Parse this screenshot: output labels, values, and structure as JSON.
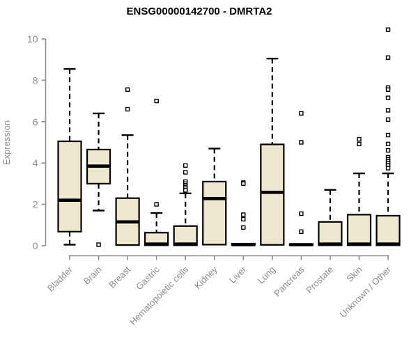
{
  "chart_data": {
    "type": "boxplot",
    "title": "ENSG00000142700 - DMRTA2",
    "ylabel": "Expression",
    "xlabel": "",
    "ylim": [
      0,
      10
    ],
    "yticks": [
      0,
      2,
      4,
      6,
      8,
      10
    ],
    "grid": false,
    "legend": "none",
    "categories": [
      "Bladder",
      "Brain",
      "Breast",
      "Gastric",
      "Hematopoietic cells",
      "Kidney",
      "Liver",
      "Lung",
      "Pancreas",
      "Prostate",
      "Skin",
      "Unknown / Other"
    ],
    "boxes": [
      {
        "category": "Bladder",
        "whisker_low": 0.05,
        "q1": 0.68,
        "median": 2.2,
        "q3": 5.05,
        "whisker_high": 8.55,
        "outliers": []
      },
      {
        "category": "Brain",
        "whisker_low": 1.7,
        "q1": 3.0,
        "median": 3.85,
        "q3": 4.65,
        "whisker_high": 6.4,
        "outliers": [
          0.05
        ]
      },
      {
        "category": "Breast",
        "whisker_low": 0.03,
        "q1": 0.03,
        "median": 1.15,
        "q3": 2.3,
        "whisker_high": 5.35,
        "outliers": [
          7.55,
          6.6
        ]
      },
      {
        "category": "Gastric",
        "whisker_low": 0.02,
        "q1": 0.02,
        "median": 0.08,
        "q3": 0.63,
        "whisker_high": 1.58,
        "outliers": [
          7.0,
          2.0
        ]
      },
      {
        "category": "Hematopoietic cells",
        "whisker_low": 0.02,
        "q1": 0.02,
        "median": 0.08,
        "q3": 0.95,
        "whisker_high": 2.53,
        "outliers": [
          3.88,
          3.55,
          3.1,
          3.0,
          2.92,
          2.84,
          2.76,
          2.68
        ]
      },
      {
        "category": "Kidney",
        "whisker_low": 0.03,
        "q1": 0.05,
        "median": 2.28,
        "q3": 3.1,
        "whisker_high": 4.7,
        "outliers": []
      },
      {
        "category": "Liver",
        "whisker_low": 0.02,
        "q1": 0.02,
        "median": 0.05,
        "q3": 0.1,
        "whisker_high": 0.12,
        "outliers": [
          3.05,
          3.0,
          1.5,
          1.28,
          0.88
        ]
      },
      {
        "category": "Lung",
        "whisker_low": 0.03,
        "q1": 0.04,
        "median": 2.58,
        "q3": 4.9,
        "whisker_high": 9.05,
        "outliers": []
      },
      {
        "category": "Pancreas",
        "whisker_low": 0.02,
        "q1": 0.02,
        "median": 0.05,
        "q3": 0.08,
        "whisker_high": 0.1,
        "outliers": [
          6.4,
          5.0,
          1.55,
          0.68
        ]
      },
      {
        "category": "Prostate",
        "whisker_low": 0.02,
        "q1": 0.02,
        "median": 0.08,
        "q3": 1.15,
        "whisker_high": 2.7,
        "outliers": []
      },
      {
        "category": "Skin",
        "whisker_low": 0.02,
        "q1": 0.02,
        "median": 0.08,
        "q3": 1.5,
        "whisker_high": 3.5,
        "outliers": [
          5.15,
          4.92
        ]
      },
      {
        "category": "Unknown / Other",
        "whisker_low": 0.02,
        "q1": 0.02,
        "median": 0.08,
        "q3": 1.45,
        "whisker_high": 3.5,
        "outliers": [
          10.45,
          9.1,
          7.65,
          7.55,
          7.15,
          6.55,
          6.1,
          5.35,
          4.92,
          4.61,
          4.28,
          4.18,
          4.08,
          3.98,
          3.88,
          3.75
        ]
      }
    ],
    "colors": {
      "box_fill": "#ede8cd",
      "box_border": "#000000",
      "median": "#000000",
      "whisker": "#000000",
      "outlier": "#000000",
      "axis": "#8c8c8c",
      "tick_label": "#8c8c8c",
      "title": "#000000",
      "background": "#ffffff"
    }
  }
}
